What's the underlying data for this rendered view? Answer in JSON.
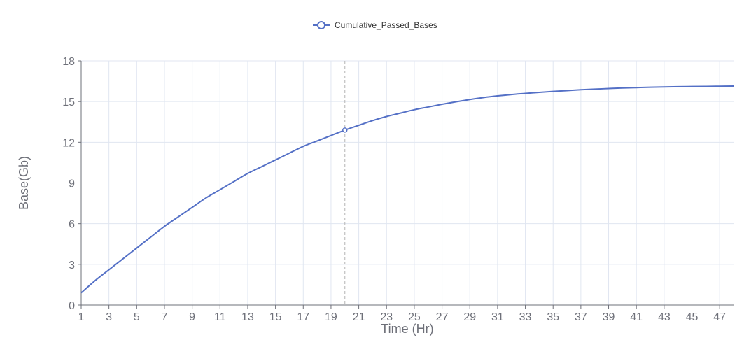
{
  "chart_data": {
    "type": "line",
    "title": "",
    "xlabel": "Time (Hr)",
    "ylabel": "Base(Gb)",
    "legend": {
      "position": "top-center",
      "entries": [
        "Cumulative_Passed_Bases"
      ]
    },
    "grid": true,
    "xlim": [
      1,
      48
    ],
    "ylim": [
      0,
      18
    ],
    "x_ticks": [
      "1",
      "3",
      "5",
      "7",
      "9",
      "11",
      "13",
      "15",
      "17",
      "19",
      "21",
      "23",
      "25",
      "27",
      "29",
      "31",
      "33",
      "35",
      "37",
      "39",
      "41",
      "43",
      "45",
      "47"
    ],
    "y_ticks": [
      "0",
      "3",
      "6",
      "9",
      "12",
      "15",
      "18"
    ],
    "highlight": {
      "x": 20,
      "y": 12.9
    },
    "colors": {
      "series": "#5470c6",
      "grid": "#e0e6f1",
      "axis": "#6e7079",
      "crosshair": "#b5b5b5"
    },
    "series": [
      {
        "name": "Cumulative_Passed_Bases",
        "x": [
          1,
          2,
          3,
          4,
          5,
          6,
          7,
          8,
          9,
          10,
          11,
          12,
          13,
          14,
          15,
          16,
          17,
          18,
          19,
          20,
          21,
          22,
          23,
          24,
          25,
          26,
          27,
          28,
          29,
          30,
          31,
          32,
          33,
          34,
          35,
          36,
          37,
          38,
          39,
          40,
          41,
          42,
          43,
          44,
          45,
          46,
          47,
          48
        ],
        "values": [
          0.9,
          1.8,
          2.6,
          3.4,
          4.2,
          5.0,
          5.8,
          6.5,
          7.2,
          7.9,
          8.5,
          9.1,
          9.7,
          10.2,
          10.7,
          11.2,
          11.7,
          12.1,
          12.5,
          12.9,
          13.25,
          13.6,
          13.9,
          14.15,
          14.4,
          14.6,
          14.8,
          14.98,
          15.15,
          15.3,
          15.42,
          15.52,
          15.6,
          15.68,
          15.75,
          15.81,
          15.87,
          15.92,
          15.96,
          16.0,
          16.03,
          16.06,
          16.08,
          16.1,
          16.11,
          16.12,
          16.13,
          16.14
        ]
      }
    ]
  }
}
